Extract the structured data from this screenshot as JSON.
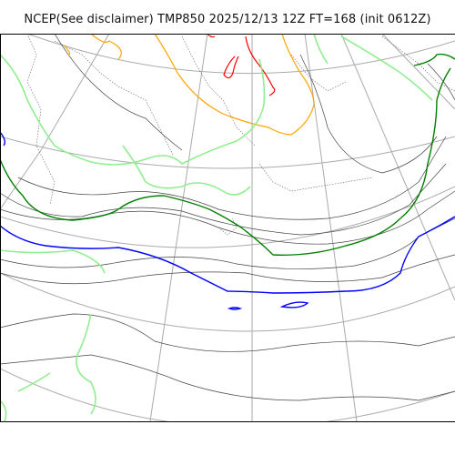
{
  "title": "NCEP(See disclaimer) TMP850 2025/12/13 12Z FT=168 (init 0612Z)",
  "map": {
    "colors": {
      "grid": "#aaaaaa",
      "coast": "#555555",
      "isotherm_thin": "#444444",
      "warm_orange": "#ffa500",
      "warm_red": "#ff0000",
      "light_green": "#90ee90",
      "dark_green": "#008000",
      "zero_blue": "#0000ff"
    }
  }
}
